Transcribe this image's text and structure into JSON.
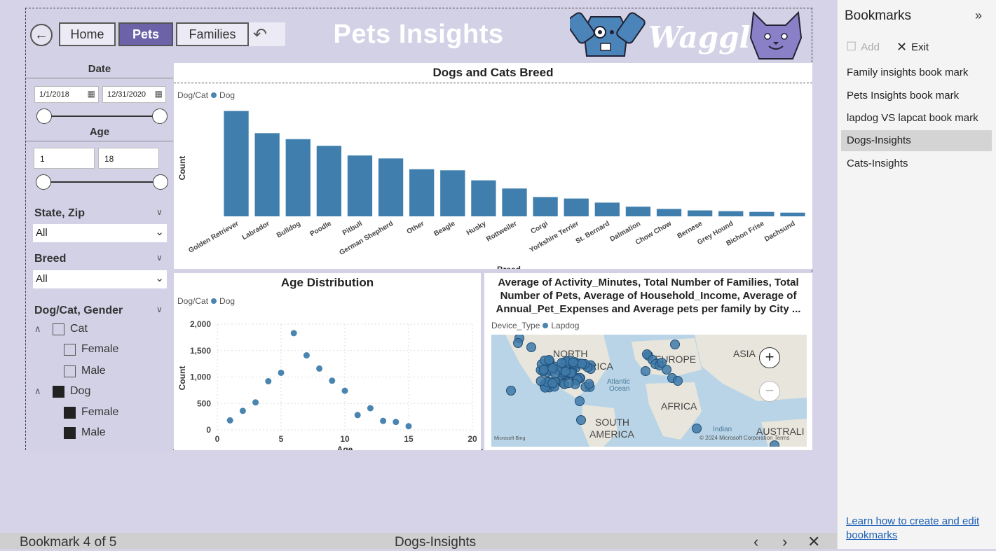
{
  "nav": {
    "back_icon": "back-arrow-icon",
    "home_label": "Home",
    "pets_label": "Pets",
    "families_label": "Families",
    "undo_icon": "undo-icon"
  },
  "page_title": "Pets Insights",
  "logo_text": "Waggl'e",
  "colors": {
    "accent": "#6b62a8",
    "bar": "#3f7ead",
    "canvas": "#d3d1e6",
    "point": "#4a84b0"
  },
  "filters": {
    "date": {
      "label": "Date",
      "start": "1/1/2018",
      "end": "12/31/2020"
    },
    "age": {
      "label": "Age",
      "min": "1",
      "max": "18"
    },
    "state_zip": {
      "label": "State, Zip",
      "value": "All"
    },
    "breed": {
      "label": "Breed",
      "value": "All"
    },
    "dogcat_gender": {
      "label": "Dog/Cat, Gender",
      "tree": [
        {
          "label": "Cat",
          "checked": false,
          "children": [
            {
              "label": "Female",
              "checked": false
            },
            {
              "label": "Male",
              "checked": false
            }
          ]
        },
        {
          "label": "Dog",
          "checked": true,
          "children": [
            {
              "label": "Female",
              "checked": true
            },
            {
              "label": "Male",
              "checked": true
            }
          ]
        }
      ]
    }
  },
  "breed_chart": {
    "title": "Dogs and Cats Breed",
    "legend_title": "Dog/Cat",
    "legend_item": "Dog"
  },
  "age_chart": {
    "title": "Age Distribution",
    "legend_title": "Dog/Cat",
    "legend_item": "Dog"
  },
  "map": {
    "title": "Average of Activity_Minutes, Total Number of Families, Total Number of Pets, Average of Household_Income, Average of Annual_Pet_Expenses and Average pets per family by City ...",
    "legend_title": "Device_Type",
    "legend_item": "Lapdog",
    "labels": {
      "na": "NORTH\nAMERICA",
      "europe": "EUROPE",
      "asia": "ASIA",
      "africa": "AFRICA",
      "sa": "SOUTH\nAMERICA",
      "atlantic": "Atlantic\nOcean",
      "indian": "Indian",
      "australia": "AUSTRALI"
    },
    "bing": "Microsoft Bing",
    "copyright": "© 2024 Microsoft Corporation",
    "terms": "Terms",
    "zoom_in": "+",
    "zoom_out": "−"
  },
  "chart_data": [
    {
      "type": "bar",
      "title": "Dogs and Cats Breed",
      "xlabel": "Breed",
      "ylabel": "Count",
      "legend": {
        "title": "Dog/Cat",
        "entries": [
          "Dog"
        ],
        "placement": "top-left"
      },
      "categories": [
        "Golden Retriever",
        "Labrador",
        "Bulldog",
        "Poodle",
        "Pitbull",
        "German Shepherd",
        "Other",
        "Beagle",
        "Husky",
        "Rottweiler",
        "Corgi",
        "Yorkshire Terrier",
        "St. Bernard",
        "Dalmation",
        "Chow Chow",
        "Bernese",
        "Grey Hound",
        "Bichon Frise",
        "Dachsund"
      ],
      "series": [
        {
          "name": "Dog",
          "values": [
            1420,
            1120,
            1040,
            950,
            820,
            780,
            635,
            620,
            485,
            375,
            260,
            240,
            185,
            130,
            100,
            80,
            70,
            60,
            50
          ]
        }
      ],
      "ylim": [
        0,
        1500
      ],
      "grid": false
    },
    {
      "type": "scatter",
      "title": "Age Distribution",
      "xlabel": "Age",
      "ylabel": "Count",
      "legend": {
        "title": "Dog/Cat",
        "entries": [
          "Dog"
        ],
        "placement": "top-left"
      },
      "x": [
        1,
        2,
        3,
        4,
        5,
        6,
        7,
        8,
        9,
        10,
        11,
        12,
        13,
        14,
        15
      ],
      "series": [
        {
          "name": "Dog",
          "values": [
            180,
            360,
            520,
            920,
            1080,
            1830,
            1410,
            1160,
            930,
            740,
            280,
            410,
            170,
            150,
            70
          ]
        }
      ],
      "xlim": [
        0,
        20
      ],
      "ylim": [
        0,
        2000
      ],
      "xticks": [
        "0",
        "5",
        "10",
        "15",
        "20"
      ],
      "yticks": [
        "0",
        "500",
        "1,000",
        "1,500",
        "2,000"
      ],
      "grid": true
    }
  ],
  "bookmarks_pane": {
    "title": "Bookmarks",
    "collapse_icon": "double-chevron-right-icon",
    "add_label": "Add",
    "exit_label": "Exit",
    "items": [
      {
        "label": "Family insights book mark",
        "selected": false
      },
      {
        "label": "Pets Insights book mark",
        "selected": false
      },
      {
        "label": "lapdog VS lapcat book mark",
        "selected": false
      },
      {
        "label": "Dogs-Insights",
        "selected": true
      },
      {
        "label": "Cats-Insights",
        "selected": false
      }
    ],
    "help_link": "Learn how to create and edit bookmarks"
  },
  "footer": {
    "position": "Bookmark 4 of 5",
    "current": "Dogs-Insights"
  }
}
